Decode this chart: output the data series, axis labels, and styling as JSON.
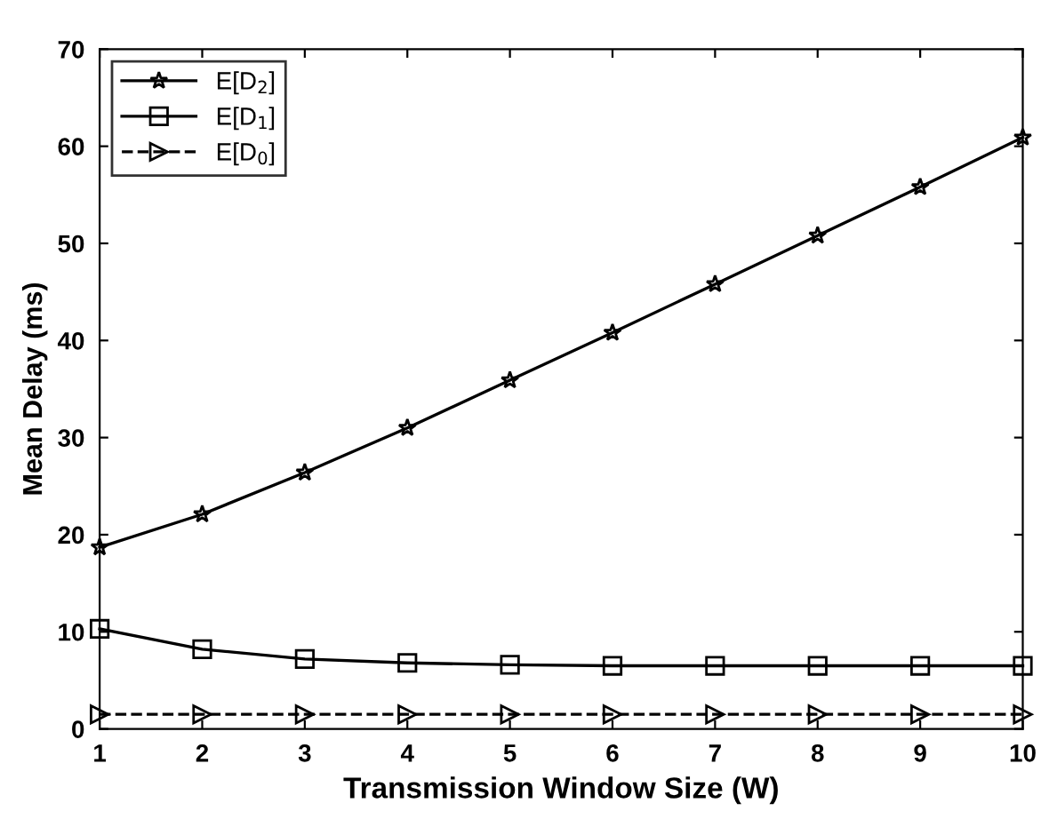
{
  "chart_data": {
    "type": "line",
    "xlabel": "Transmission Window Size (W)",
    "ylabel": "Mean Delay (ms)",
    "x": [
      1,
      2,
      3,
      4,
      5,
      6,
      7,
      8,
      9,
      10
    ],
    "xlim": [
      1,
      10
    ],
    "xticks": [
      1,
      2,
      3,
      4,
      5,
      6,
      7,
      8,
      9,
      10
    ],
    "ylim": [
      0,
      70
    ],
    "yticks": [
      0,
      10,
      20,
      30,
      40,
      50,
      60,
      70
    ],
    "grid": false,
    "legend": "top left",
    "series": [
      {
        "name": "E[D$_{2}$]",
        "color": "#000000",
        "marker": "star",
        "line_style": "solid",
        "values": [
          18.7,
          22.1,
          26.4,
          31.0,
          35.9,
          40.8,
          45.8,
          50.8,
          55.8,
          60.9
        ]
      },
      {
        "name": "E[D$_{1}$]",
        "color": "#000000",
        "marker": "square",
        "line_style": "solid",
        "values": [
          10.3,
          8.2,
          7.2,
          6.8,
          6.6,
          6.5,
          6.5,
          6.5,
          6.5,
          6.5
        ]
      },
      {
        "name": "E[D$_{0}$]",
        "color": "#000000",
        "marker": "triangle",
        "line_style": "dashed",
        "values": [
          1.5,
          1.5,
          1.5,
          1.5,
          1.5,
          1.5,
          1.5,
          1.5,
          1.5,
          1.5
        ]
      }
    ]
  }
}
